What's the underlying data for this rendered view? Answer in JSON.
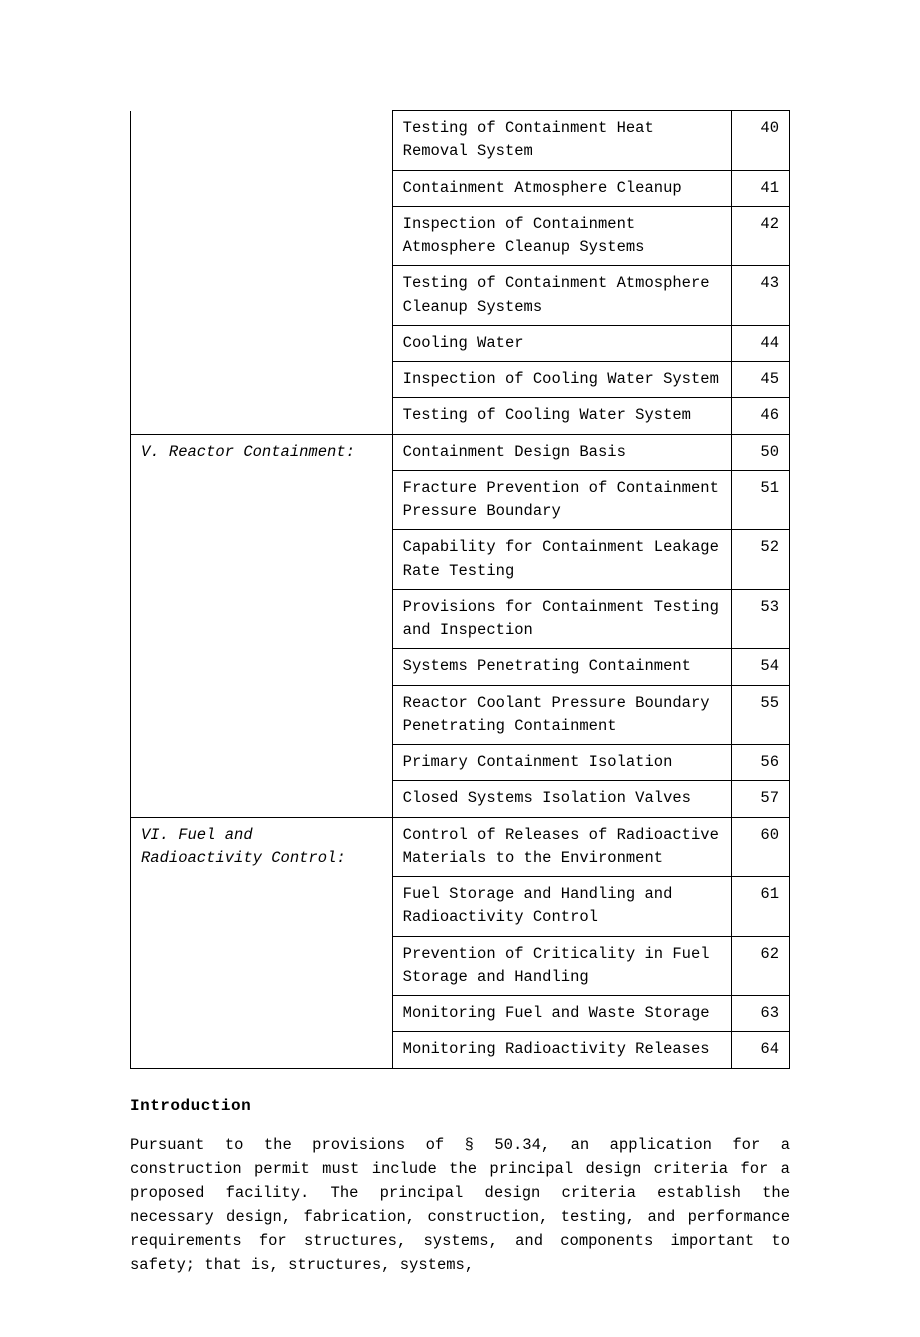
{
  "table": {
    "sections": [
      {
        "header": "",
        "rows": [
          {
            "desc": "Testing of Containment Heat Removal System",
            "num": "40"
          },
          {
            "desc": "Containment Atmosphere Cleanup",
            "num": "41"
          },
          {
            "desc": "Inspection of Containment Atmosphere Cleanup Systems",
            "num": "42"
          },
          {
            "desc": "Testing of Containment Atmosphere Cleanup Systems",
            "num": "43"
          },
          {
            "desc": "Cooling Water",
            "num": "44"
          },
          {
            "desc": "Inspection of Cooling Water System",
            "num": "45"
          },
          {
            "desc": "Testing of Cooling Water System",
            "num": "46"
          }
        ]
      },
      {
        "header": "V. Reactor Containment:",
        "rows": [
          {
            "desc": "Containment Design Basis",
            "num": "50"
          },
          {
            "desc": "Fracture Prevention of Containment Pressure Boundary",
            "num": "51"
          },
          {
            "desc": "Capability for Containment Leakage Rate Testing",
            "num": "52"
          },
          {
            "desc": "Provisions for Containment Testing and Inspection",
            "num": "53"
          },
          {
            "desc": "Systems Penetrating Containment",
            "num": "54"
          },
          {
            "desc": "Reactor Coolant Pressure Boundary Penetrating Containment",
            "num": "55"
          },
          {
            "desc": "Primary Containment Isolation",
            "num": "56"
          },
          {
            "desc": "Closed Systems Isolation Valves",
            "num": "57"
          }
        ]
      },
      {
        "header": "VI. Fuel and Radioactivity Control:",
        "rows": [
          {
            "desc": "Control of Releases of Radioactive Materials to the Environment",
            "num": "60"
          },
          {
            "desc": "Fuel Storage and Handling and Radioactivity Control",
            "num": "61"
          },
          {
            "desc": "Prevention of Criticality in Fuel Storage and Handling",
            "num": "62"
          },
          {
            "desc": "Monitoring Fuel and Waste Storage",
            "num": "63"
          },
          {
            "desc": "Monitoring Radioactivity Releases",
            "num": "64"
          }
        ]
      }
    ]
  },
  "heading": "Introduction",
  "paragraph": "Pursuant to the provisions of § 50.34, an application for a construction permit must include the principal design criteria for a proposed facility. The principal design criteria establish the necessary design, fabrication, construction, testing, and performance requirements for structures, systems, and components important to safety; that is, structures, systems,"
}
